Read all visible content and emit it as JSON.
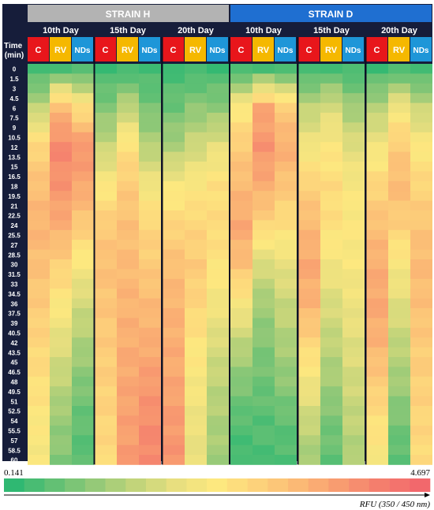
{
  "chart_data": {
    "type": "heatmap",
    "title": "",
    "strains": [
      {
        "name": "STRAIN H",
        "color": "#b3b3b3"
      },
      {
        "name": "STRAIN D",
        "color": "#1f6fd1"
      }
    ],
    "days": [
      "10th Day",
      "15th Day",
      "20th Day"
    ],
    "treatments": [
      {
        "name": "C",
        "color": "#e8161b"
      },
      {
        "name": "RV",
        "color": "#f5b800"
      },
      {
        "name": "NDs",
        "color": "#1e96d8"
      }
    ],
    "row_header": "Time (min)",
    "time_points": [
      "0",
      "1.5",
      "3",
      "4.5",
      "6",
      "7.5",
      "9",
      "10.5",
      "12",
      "13.5",
      "15",
      "16.5",
      "18",
      "19.5",
      "21",
      "22.5",
      "24",
      "25.5",
      "27",
      "28.5",
      "30",
      "31.5",
      "33",
      "34.5",
      "36",
      "37.5",
      "39",
      "40.5",
      "42",
      "43.5",
      "45",
      "46.5",
      "48",
      "49.5",
      "51",
      "52.5",
      "54",
      "55.5",
      "57",
      "58.5",
      "60"
    ],
    "colorbar": {
      "min_label": "0.141",
      "max_label": "4.697",
      "min": 0.141,
      "max": 4.697,
      "colors": [
        "#2fb872",
        "#63c074",
        "#95c978",
        "#c2d47a",
        "#e8df7f",
        "#fde87f",
        "#fdd27b",
        "#fbb975",
        "#f89c70",
        "#f47e6d",
        "#f2686c"
      ]
    },
    "axis_label": "RFU (350 / 450 nm)",
    "column_order": [
      "H-10-C",
      "H-10-RV",
      "H-10-NDs",
      "H-15-C",
      "H-15-RV",
      "H-15-NDs",
      "H-20-C",
      "H-20-RV",
      "H-20-NDs",
      "D-10-C",
      "D-10-RV",
      "D-10-NDs",
      "D-15-C",
      "D-15-RV",
      "D-15-NDs",
      "D-20-C",
      "D-20-RV",
      "D-20-NDs"
    ],
    "control_points_note": "",
    "values_by_column": {
      "t": [
        0,
        6,
        12,
        18,
        24,
        30,
        36,
        42,
        48,
        54,
        60
      ],
      "series": [
        {
          "name": "H-10-C",
          "values": [
            0.3,
            1.5,
            2.8,
            3.2,
            3.4,
            3.2,
            3.0,
            2.8,
            2.6,
            2.4,
            2.3
          ]
        },
        {
          "name": "H-10-RV",
          "values": [
            0.4,
            3.3,
            4.1,
            3.9,
            3.5,
            2.9,
            2.4,
            1.9,
            1.5,
            1.1,
            0.9
          ]
        },
        {
          "name": "H-10-NDs",
          "values": [
            0.4,
            2.6,
            3.9,
            3.6,
            3.0,
            2.3,
            1.7,
            1.3,
            0.9,
            0.6,
            0.5
          ]
        },
        {
          "name": "H-15-C",
          "values": [
            0.3,
            0.9,
            1.6,
            2.4,
            3.0,
            3.2,
            3.1,
            3.0,
            2.9,
            2.8,
            2.7
          ]
        },
        {
          "name": "H-15-RV",
          "values": [
            0.3,
            1.5,
            2.6,
            3.0,
            3.2,
            3.3,
            3.4,
            3.5,
            3.6,
            3.7,
            3.8
          ]
        },
        {
          "name": "H-15-NDs",
          "values": [
            0.3,
            0.8,
            1.4,
            2.2,
            2.8,
            3.0,
            3.3,
            3.5,
            3.8,
            4.0,
            4.1
          ]
        },
        {
          "name": "H-20-C",
          "values": [
            0.3,
            0.7,
            1.3,
            2.3,
            2.8,
            3.2,
            3.4,
            3.5,
            3.6,
            3.8,
            3.9
          ]
        },
        {
          "name": "H-20-RV",
          "values": [
            0.3,
            1.0,
            1.7,
            2.4,
            2.8,
            3.0,
            2.8,
            2.5,
            2.3,
            2.1,
            2.0
          ]
        },
        {
          "name": "H-20-NDs",
          "values": [
            0.3,
            1.0,
            2.0,
            2.6,
            2.7,
            2.5,
            2.2,
            1.8,
            1.5,
            1.3,
            1.2
          ]
        },
        {
          "name": "D-10-C",
          "values": [
            0.3,
            2.4,
            3.0,
            3.3,
            3.6,
            3.2,
            2.3,
            1.5,
            0.9,
            0.5,
            0.3
          ]
        },
        {
          "name": "D-10-RV",
          "values": [
            0.4,
            3.6,
            3.9,
            3.5,
            2.8,
            1.8,
            1.2,
            0.9,
            0.7,
            0.5,
            0.4
          ]
        },
        {
          "name": "D-10-NDs",
          "values": [
            0.4,
            3.0,
            3.5,
            3.1,
            2.6,
            2.0,
            1.6,
            1.3,
            1.0,
            0.6,
            0.4
          ]
        },
        {
          "name": "D-15-C",
          "values": [
            0.3,
            1.5,
            2.2,
            2.9,
            3.3,
            3.6,
            3.4,
            2.8,
            2.2,
            1.6,
            1.2
          ]
        },
        {
          "name": "D-15-RV",
          "values": [
            0.4,
            1.8,
            2.4,
            2.7,
            2.6,
            2.2,
            1.8,
            1.5,
            1.2,
            0.8,
            0.6
          ]
        },
        {
          "name": "D-15-NDs",
          "values": [
            0.3,
            1.2,
            1.9,
            2.3,
            2.4,
            2.3,
            2.1,
            1.9,
            1.7,
            1.5,
            1.3
          ]
        },
        {
          "name": "D-20-C",
          "values": [
            0.3,
            1.4,
            2.2,
            2.8,
            3.2,
            3.5,
            3.6,
            3.4,
            3.0,
            2.6,
            2.3
          ]
        },
        {
          "name": "D-20-RV",
          "values": [
            0.4,
            2.2,
            3.0,
            3.3,
            2.9,
            2.3,
            1.9,
            1.5,
            1.2,
            0.8,
            0.5
          ]
        },
        {
          "name": "D-20-NDs",
          "values": [
            0.3,
            1.6,
            2.4,
            2.8,
            3.1,
            3.3,
            3.2,
            3.0,
            2.9,
            2.8,
            2.7
          ]
        }
      ]
    }
  }
}
